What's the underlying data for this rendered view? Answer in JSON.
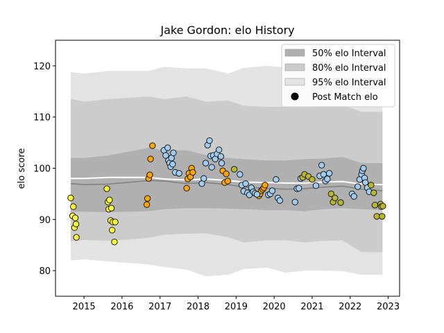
{
  "chart_data": {
    "type": "scatter",
    "title": "Jake Gordon: elo History",
    "xlabel": "",
    "ylabel": "elo score",
    "xlim": [
      2014.25,
      2023.3
    ],
    "ylim": [
      75,
      125
    ],
    "xticks": [
      2015,
      2016,
      2017,
      2018,
      2019,
      2020,
      2021,
      2022,
      2023
    ],
    "yticks": [
      80,
      90,
      100,
      110,
      120
    ],
    "grid": false,
    "legend_position": "top-right",
    "legend": [
      {
        "label": "50% elo Interval",
        "kind": "band",
        "color": "#b0b0b0"
      },
      {
        "label": "80% elo Interval",
        "kind": "band",
        "color": "#cccccc"
      },
      {
        "label": "95% elo Interval",
        "kind": "band",
        "color": "#e3e3e3"
      },
      {
        "label": "Post Match elo",
        "kind": "marker",
        "color": "#000000"
      }
    ],
    "band_x": [
      2014.65,
      2015.0,
      2015.65,
      2016.7,
      2017.1,
      2017.7,
      2018.2,
      2018.8,
      2019.2,
      2019.8,
      2020.3,
      2020.8,
      2021.3,
      2021.8,
      2022.3,
      2022.85
    ],
    "median": [
      97.0,
      96.8,
      96.9,
      97.6,
      97.5,
      97.0,
      97.2,
      96.8,
      96.3,
      96.1,
      95.9,
      96.0,
      96.3,
      96.5,
      95.9,
      95.6
    ],
    "mean": [
      98.0,
      98.0,
      98.2,
      98.2,
      97.9,
      97.7,
      97.9,
      97.6,
      97.3,
      97.2,
      97.1,
      97.1,
      97.3,
      97.4,
      96.9,
      96.8
    ],
    "band50_low": [
      91.5,
      91.5,
      91.4,
      91.6,
      92.0,
      92.2,
      92.2,
      92.1,
      92.0,
      91.8,
      91.8,
      91.6,
      92.0,
      92.2,
      92.0,
      91.8
    ],
    "band50_high": [
      102.0,
      102.0,
      102.5,
      104.0,
      103.5,
      103.5,
      102.6,
      102.0,
      101.8,
      101.5,
      101.5,
      101.8,
      101.9,
      102.2,
      101.0,
      101.0
    ],
    "band80_low": [
      85.7,
      86.0,
      85.8,
      86.4,
      87.0,
      87.2,
      87.3,
      86.5,
      85.5,
      85.9,
      85.9,
      85.5,
      85.8,
      85.9,
      83.6,
      83.6
    ],
    "band80_high": [
      113.5,
      113.0,
      113.5,
      114.0,
      113.5,
      114.0,
      113.0,
      113.2,
      112.2,
      112.0,
      112.0,
      112.0,
      112.3,
      112.4,
      111.0,
      111.0
    ],
    "band95_low": [
      82.0,
      82.2,
      81.8,
      81.2,
      80.7,
      80.2,
      78.9,
      79.2,
      80.3,
      80.6,
      79.6,
      80.0,
      80.0,
      79.9,
      79.2,
      79.2
    ],
    "band95_high": [
      118.8,
      118.5,
      119.0,
      119.0,
      119.8,
      119.5,
      119.5,
      118.5,
      119.6,
      120.0,
      119.7,
      120.2,
      120.0,
      119.4,
      118.5,
      119.0
    ],
    "series": [
      {
        "color": "#ffff33",
        "x": [
          2014.65,
          2014.7,
          2014.72,
          2014.75,
          2014.77,
          2014.79,
          2014.8,
          2015.6,
          2015.63,
          2015.65,
          2015.67,
          2015.7,
          2015.72,
          2015.74,
          2015.76,
          2015.8,
          2015.82
        ],
        "y": [
          94.2,
          90.7,
          92.5,
          88.4,
          90.3,
          89.1,
          86.5,
          96.0,
          93.4,
          92.0,
          93.8,
          89.8,
          92.2,
          87.9,
          89.5,
          85.6,
          89.5
        ]
      },
      {
        "color": "#ffa500",
        "x": [
          2016.65,
          2016.67,
          2016.7,
          2016.73,
          2016.75,
          2016.8,
          2017.7,
          2017.73,
          2017.76,
          2017.8,
          2017.83,
          2017.86,
          2018.65,
          2018.7,
          2018.74,
          2018.78,
          2019.6,
          2019.63,
          2019.66,
          2019.7,
          2019.73,
          2019.76
        ],
        "y": [
          92.9,
          94.1,
          98.0,
          98.7,
          101.8,
          104.4,
          96.1,
          97.9,
          99.0,
          98.3,
          100.0,
          99.2,
          99.5,
          97.2,
          98.9,
          97.5,
          94.6,
          95.0,
          95.6,
          95.9,
          96.2,
          96.7
        ]
      },
      {
        "color": "#9fcdf2",
        "x": [
          2017.1,
          2017.15,
          2017.2,
          2017.22,
          2017.25,
          2017.28,
          2017.3,
          2017.33,
          2017.35,
          2017.4,
          2017.5,
          2018.1,
          2018.15,
          2018.2,
          2018.25,
          2018.3,
          2018.33,
          2018.36,
          2018.4,
          2018.45,
          2018.5,
          2018.55,
          2018.6,
          2018.62,
          2019.1,
          2019.15,
          2019.2,
          2019.25,
          2019.3,
          2019.35,
          2019.4,
          2019.45,
          2019.5,
          2019.55,
          2019.85,
          2019.9,
          2019.95,
          2020.05,
          2020.1,
          2020.15,
          2020.55,
          2020.6,
          2020.65,
          2020.7,
          2021.1,
          2021.2,
          2021.25,
          2021.3,
          2021.35,
          2021.4,
          2021.45,
          2022.05,
          2022.1,
          2022.2,
          2022.25,
          2022.3,
          2022.32,
          2022.35,
          2022.38,
          2022.4,
          2022.45,
          2022.5
        ],
        "y": [
          103.5,
          102.5,
          104.0,
          101.5,
          101.0,
          100.3,
          102.0,
          100.8,
          103.0,
          99.2,
          99.0,
          97.0,
          98.0,
          101.0,
          104.5,
          105.4,
          102.4,
          100.2,
          102.5,
          101.8,
          102.8,
          103.6,
          102.3,
          101.0,
          98.8,
          96.7,
          95.5,
          97.0,
          95.2,
          94.8,
          96.2,
          95.4,
          95.1,
          94.9,
          94.8,
          95.0,
          95.6,
          97.8,
          94.2,
          93.7,
          93.4,
          96.0,
          96.1,
          98.0,
          96.6,
          98.5,
          100.6,
          98.8,
          97.5,
          97.9,
          99.0,
          95.0,
          94.5,
          96.4,
          97.8,
          98.8,
          99.5,
          100.0,
          98.1,
          97.2,
          96.2,
          95.4
        ]
      },
      {
        "color": "#b8b82a",
        "x": [
          2018.95,
          2020.75,
          2020.8,
          2020.9,
          2021.0,
          2021.5,
          2021.55,
          2021.6,
          2021.75,
          2022.55,
          2022.62,
          2022.65,
          2022.7,
          2022.8,
          2022.82,
          2022.84,
          2022.86
        ],
        "y": [
          99.8,
          98.2,
          98.8,
          98.4,
          97.8,
          95.0,
          93.4,
          94.2,
          93.3,
          96.7,
          95.2,
          92.8,
          90.6,
          93.0,
          92.5,
          90.6,
          92.6
        ]
      }
    ]
  }
}
